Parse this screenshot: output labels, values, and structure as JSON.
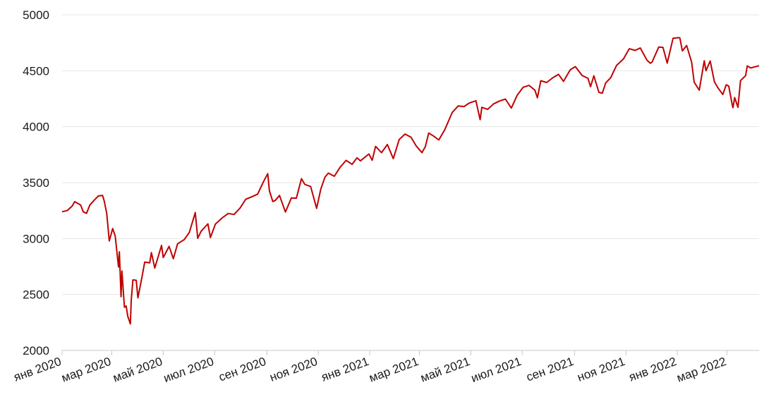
{
  "chart_data": {
    "type": "line",
    "title": "",
    "xlabel": "",
    "ylabel": "",
    "ylim": [
      2000,
      5000
    ],
    "yticks": [
      2000,
      2500,
      3000,
      3500,
      4000,
      4500,
      5000
    ],
    "xlim": [
      "2020-01-02",
      "2022-04-08"
    ],
    "xticks": [
      {
        "date": "2020-01-02",
        "label": "янв 2020"
      },
      {
        "date": "2020-03-01",
        "label": "мар 2020"
      },
      {
        "date": "2020-05-01",
        "label": "май 2020"
      },
      {
        "date": "2020-07-01",
        "label": "июл 2020"
      },
      {
        "date": "2020-09-01",
        "label": "сен 2020"
      },
      {
        "date": "2020-11-01",
        "label": "ноя 2020"
      },
      {
        "date": "2021-01-01",
        "label": "янв 2021"
      },
      {
        "date": "2021-03-01",
        "label": "мар 2021"
      },
      {
        "date": "2021-05-01",
        "label": "май 2021"
      },
      {
        "date": "2021-07-01",
        "label": "июл 2021"
      },
      {
        "date": "2021-09-01",
        "label": "сен 2021"
      },
      {
        "date": "2021-11-01",
        "label": "ноя 2021"
      },
      {
        "date": "2022-01-01",
        "label": "янв 2022"
      },
      {
        "date": "2022-03-01",
        "label": "мар 2022"
      }
    ],
    "grid": true,
    "line_color": "#c00000",
    "series": [
      {
        "points": [
          [
            "2020-01-02",
            3240
          ],
          [
            "2020-01-08",
            3250
          ],
          [
            "2020-01-14",
            3290
          ],
          [
            "2020-01-17",
            3330
          ],
          [
            "2020-01-24",
            3300
          ],
          [
            "2020-01-27",
            3240
          ],
          [
            "2020-01-31",
            3225
          ],
          [
            "2020-02-04",
            3300
          ],
          [
            "2020-02-10",
            3350
          ],
          [
            "2020-02-14",
            3380
          ],
          [
            "2020-02-19",
            3386
          ],
          [
            "2020-02-21",
            3337
          ],
          [
            "2020-02-24",
            3225
          ],
          [
            "2020-02-27",
            2978
          ],
          [
            "2020-03-02",
            3090
          ],
          [
            "2020-03-05",
            3023
          ],
          [
            "2020-03-09",
            2746
          ],
          [
            "2020-03-10",
            2882
          ],
          [
            "2020-03-12",
            2480
          ],
          [
            "2020-03-13",
            2711
          ],
          [
            "2020-03-16",
            2386
          ],
          [
            "2020-03-18",
            2398
          ],
          [
            "2020-03-20",
            2304
          ],
          [
            "2020-03-23",
            2237
          ],
          [
            "2020-03-24",
            2447
          ],
          [
            "2020-03-26",
            2630
          ],
          [
            "2020-03-30",
            2627
          ],
          [
            "2020-04-01",
            2470
          ],
          [
            "2020-04-06",
            2664
          ],
          [
            "2020-04-09",
            2789
          ],
          [
            "2020-04-15",
            2783
          ],
          [
            "2020-04-17",
            2875
          ],
          [
            "2020-04-21",
            2737
          ],
          [
            "2020-04-29",
            2939
          ],
          [
            "2020-05-01",
            2830
          ],
          [
            "2020-05-08",
            2930
          ],
          [
            "2020-05-13",
            2820
          ],
          [
            "2020-05-18",
            2953
          ],
          [
            "2020-05-26",
            2991
          ],
          [
            "2020-06-01",
            3055
          ],
          [
            "2020-06-08",
            3232
          ],
          [
            "2020-06-11",
            3002
          ],
          [
            "2020-06-15",
            3066
          ],
          [
            "2020-06-23",
            3131
          ],
          [
            "2020-06-26",
            3009
          ],
          [
            "2020-07-02",
            3130
          ],
          [
            "2020-07-10",
            3185
          ],
          [
            "2020-07-17",
            3224
          ],
          [
            "2020-07-24",
            3215
          ],
          [
            "2020-07-31",
            3271
          ],
          [
            "2020-08-07",
            3351
          ],
          [
            "2020-08-14",
            3373
          ],
          [
            "2020-08-21",
            3397
          ],
          [
            "2020-08-28",
            3508
          ],
          [
            "2020-09-02",
            3580
          ],
          [
            "2020-09-04",
            3427
          ],
          [
            "2020-09-08",
            3331
          ],
          [
            "2020-09-11",
            3341
          ],
          [
            "2020-09-16",
            3385
          ],
          [
            "2020-09-23",
            3237
          ],
          [
            "2020-09-30",
            3363
          ],
          [
            "2020-10-06",
            3361
          ],
          [
            "2020-10-12",
            3535
          ],
          [
            "2020-10-16",
            3484
          ],
          [
            "2020-10-23",
            3465
          ],
          [
            "2020-10-30",
            3270
          ],
          [
            "2020-11-04",
            3444
          ],
          [
            "2020-11-09",
            3550
          ],
          [
            "2020-11-13",
            3585
          ],
          [
            "2020-11-20",
            3557
          ],
          [
            "2020-11-27",
            3638
          ],
          [
            "2020-12-04",
            3699
          ],
          [
            "2020-12-11",
            3663
          ],
          [
            "2020-12-17",
            3722
          ],
          [
            "2020-12-21",
            3694
          ],
          [
            "2020-12-31",
            3756
          ],
          [
            "2021-01-04",
            3700
          ],
          [
            "2021-01-08",
            3824
          ],
          [
            "2021-01-15",
            3768
          ],
          [
            "2021-01-22",
            3841
          ],
          [
            "2021-01-29",
            3714
          ],
          [
            "2021-02-05",
            3886
          ],
          [
            "2021-02-12",
            3934
          ],
          [
            "2021-02-19",
            3906
          ],
          [
            "2021-02-25",
            3829
          ],
          [
            "2021-03-04",
            3768
          ],
          [
            "2021-03-08",
            3821
          ],
          [
            "2021-03-12",
            3943
          ],
          [
            "2021-03-18",
            3915
          ],
          [
            "2021-03-24",
            3881
          ],
          [
            "2021-03-31",
            3972
          ],
          [
            "2021-04-09",
            4128
          ],
          [
            "2021-04-16",
            4185
          ],
          [
            "2021-04-23",
            4180
          ],
          [
            "2021-04-29",
            4211
          ],
          [
            "2021-05-07",
            4232
          ],
          [
            "2021-05-12",
            4063
          ],
          [
            "2021-05-14",
            4173
          ],
          [
            "2021-05-21",
            4155
          ],
          [
            "2021-05-28",
            4204
          ],
          [
            "2021-06-04",
            4229
          ],
          [
            "2021-06-11",
            4247
          ],
          [
            "2021-06-18",
            4166
          ],
          [
            "2021-06-25",
            4280
          ],
          [
            "2021-07-02",
            4352
          ],
          [
            "2021-07-09",
            4369
          ],
          [
            "2021-07-16",
            4327
          ],
          [
            "2021-07-19",
            4258
          ],
          [
            "2021-07-23",
            4411
          ],
          [
            "2021-07-30",
            4395
          ],
          [
            "2021-08-06",
            4436
          ],
          [
            "2021-08-13",
            4468
          ],
          [
            "2021-08-19",
            4405
          ],
          [
            "2021-08-27",
            4509
          ],
          [
            "2021-09-02",
            4537
          ],
          [
            "2021-09-10",
            4458
          ],
          [
            "2021-09-17",
            4432
          ],
          [
            "2021-09-20",
            4357
          ],
          [
            "2021-09-24",
            4455
          ],
          [
            "2021-09-30",
            4307
          ],
          [
            "2021-10-04",
            4300
          ],
          [
            "2021-10-08",
            4391
          ],
          [
            "2021-10-14",
            4438
          ],
          [
            "2021-10-21",
            4549
          ],
          [
            "2021-10-29",
            4605
          ],
          [
            "2021-11-05",
            4697
          ],
          [
            "2021-11-12",
            4682
          ],
          [
            "2021-11-18",
            4704
          ],
          [
            "2021-11-26",
            4594
          ],
          [
            "2021-11-30",
            4567
          ],
          [
            "2021-12-02",
            4577
          ],
          [
            "2021-12-10",
            4712
          ],
          [
            "2021-12-15",
            4709
          ],
          [
            "2021-12-20",
            4568
          ],
          [
            "2021-12-27",
            4791
          ],
          [
            "2022-01-03",
            4796
          ],
          [
            "2022-01-04",
            4793
          ],
          [
            "2022-01-07",
            4677
          ],
          [
            "2022-01-12",
            4726
          ],
          [
            "2022-01-18",
            4577
          ],
          [
            "2022-01-21",
            4398
          ],
          [
            "2022-01-27",
            4326
          ],
          [
            "2022-02-02",
            4589
          ],
          [
            "2022-02-04",
            4500
          ],
          [
            "2022-02-09",
            4587
          ],
          [
            "2022-02-14",
            4401
          ],
          [
            "2022-02-18",
            4349
          ],
          [
            "2022-02-24",
            4288
          ],
          [
            "2022-02-28",
            4374
          ],
          [
            "2022-03-03",
            4363
          ],
          [
            "2022-03-07",
            4201
          ],
          [
            "2022-03-08",
            4170
          ],
          [
            "2022-03-10",
            4260
          ],
          [
            "2022-03-14",
            4173
          ],
          [
            "2022-03-17",
            4412
          ],
          [
            "2022-03-23",
            4456
          ],
          [
            "2022-03-25",
            4543
          ],
          [
            "2022-03-29",
            4525
          ],
          [
            "2022-04-08",
            4545
          ]
        ]
      }
    ]
  }
}
